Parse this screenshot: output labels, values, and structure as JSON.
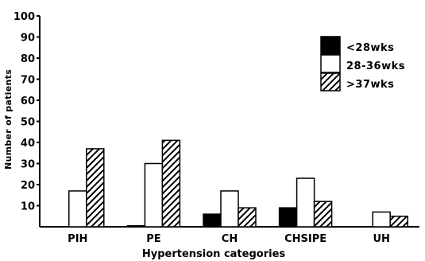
{
  "chart_data": {
    "type": "bar",
    "categories": [
      "PIH",
      "PE",
      "CH",
      "CHSIPE",
      "UH"
    ],
    "series": [
      {
        "name": "<28wks",
        "values": [
          0,
          0.5,
          6,
          9,
          0
        ],
        "pattern": "solid",
        "color": "#000000"
      },
      {
        "name": "28-36wks",
        "values": [
          17,
          30,
          17,
          23,
          7
        ],
        "pattern": "open",
        "color": "#ffffff"
      },
      {
        "name": ">37wks",
        "values": [
          37,
          41,
          9,
          12,
          5
        ],
        "pattern": "hatch",
        "color": "#ffffff"
      }
    ],
    "title": "",
    "xlabel": "Hypertension categories",
    "ylabel": "Number of patients",
    "ylim": [
      0,
      100
    ],
    "yticks": [
      "10",
      "20",
      "30",
      "40",
      "50",
      "60",
      "70",
      "80",
      "90",
      "100"
    ],
    "legend": "top-right",
    "grid": false
  }
}
